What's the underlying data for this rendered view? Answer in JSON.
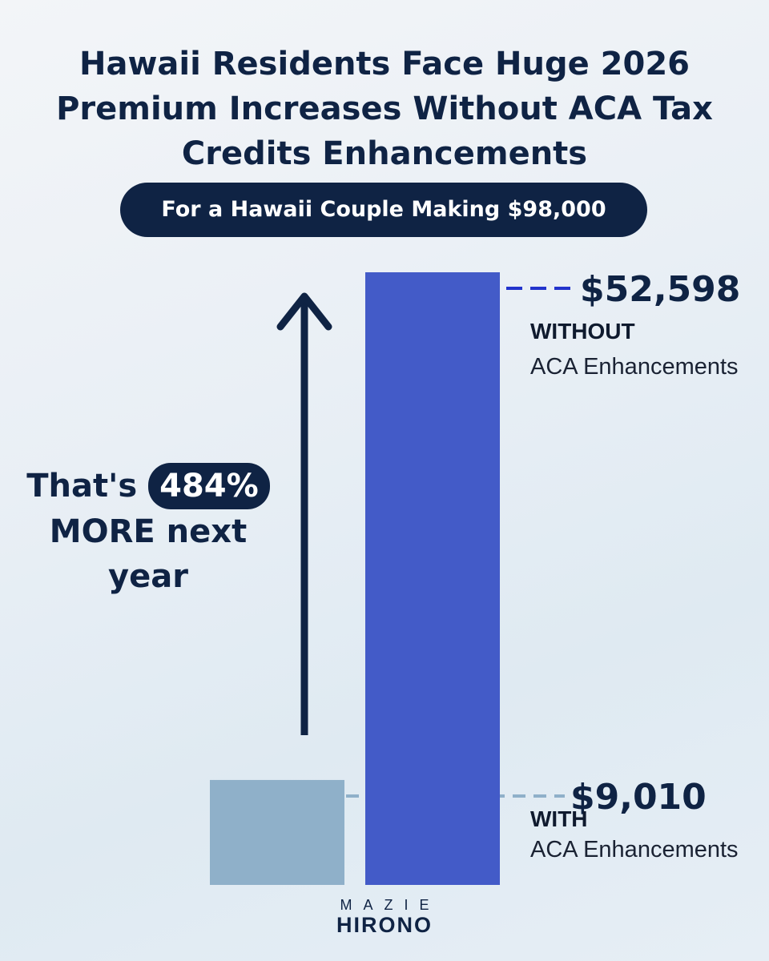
{
  "header": {
    "title": "Hawaii Residents Face Huge 2026 Premium Increases Without ACA Tax Credits Enhancements",
    "subtitle": "For a Hawaii Couple Making $98,000"
  },
  "callout": {
    "prefix": "That's",
    "percent": "484%",
    "suffix": "MORE next year"
  },
  "chart_data": {
    "type": "bar",
    "categories": [
      "WITH ACA Enhancements",
      "WITHOUT ACA Enhancements"
    ],
    "values": [
      9010,
      52598
    ],
    "value_labels": [
      "$9,010",
      "$52,598"
    ],
    "series_labels": [
      {
        "head": "WITH",
        "sub": "ACA Enhancements"
      },
      {
        "head": "WITHOUT",
        "sub": "ACA Enhancements"
      }
    ],
    "colors": [
      "#8fb0c9",
      "#435bc8"
    ],
    "leader_colors": [
      "#8fb0c9",
      "#2233cc"
    ],
    "ylim": [
      0,
      52598
    ],
    "grid": false,
    "legend": "none"
  },
  "branding": {
    "line1": "MAZIE",
    "line2": "HIRONO"
  },
  "colors": {
    "navy": "#0f2344",
    "arrow": "#0f2344"
  }
}
